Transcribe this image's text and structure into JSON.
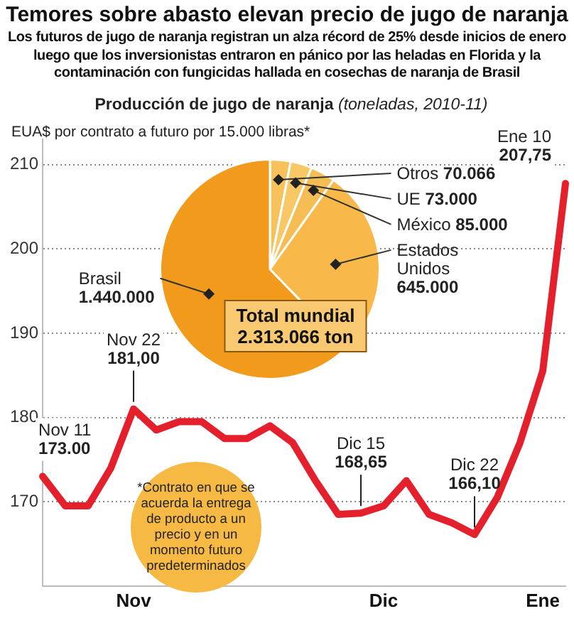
{
  "chart_data": [
    {
      "type": "line",
      "title": "Temores sobre abasto elevan precio de jugo de naranja",
      "subtitle": "Los futuros de jugo de naranja registran un alza récord de 25% desde inicios de enero luego que los inversionistas entraron en pánico por las heladas en Florida y la contaminación con fungicidas hallada en cosechas de naranja de Brasil",
      "ylabel": "EUA$ por contrato a futuro por 15.000 libras*",
      "categories": [
        null,
        null,
        null,
        null,
        "Nov",
        null,
        null,
        null,
        null,
        null,
        null,
        null,
        null,
        null,
        null,
        "Dic",
        null,
        null,
        null,
        null,
        null,
        null,
        "Ene",
        null
      ],
      "series": [
        {
          "color": "#e3202b",
          "values": [
            173,
            169.5,
            169.5,
            174,
            181,
            178.5,
            179.5,
            179.5,
            177.5,
            177.5,
            179,
            177,
            172.5,
            168.5,
            168.65,
            169.5,
            172.5,
            168.5,
            167.5,
            166.1,
            170.5,
            177,
            185.5,
            207.75
          ],
          "value_labels": [
            "Nov 11\n173.00",
            null,
            null,
            null,
            "Nov 22\n181,00",
            null,
            null,
            null,
            null,
            null,
            null,
            null,
            null,
            null,
            "Dic 15\n168,65",
            null,
            null,
            null,
            null,
            "Dic 22\n166,10",
            null,
            null,
            null,
            "Ene 10\n207,75"
          ]
        }
      ],
      "ylim": [
        160,
        213
      ],
      "yticks": [
        170,
        180,
        190,
        200,
        210
      ],
      "grid": "y",
      "marker": "none",
      "line_style": "solid",
      "legend": false,
      "annotations": [
        "*Contrato en que se acuerda la entrega de producto a un precio y en un momento futuro predeterminados"
      ]
    },
    {
      "type": "pie",
      "title": "Producción de jugo de naranja",
      "subtitle": "(toneladas, 2010-11)",
      "categories": [
        "Otros",
        "UE",
        "México",
        "Estados Unidos",
        "Brasil"
      ],
      "values": [
        70066,
        73000,
        85000,
        645000,
        1440000
      ],
      "value_labels": [
        "70.066",
        "73.000",
        "85.000",
        "645.000",
        "1.440.000"
      ],
      "colors": [
        "#f7c25c",
        "#f8c866",
        "#f6bd55",
        "#f9b94a",
        "#f29a1c"
      ],
      "annotations": [
        "Total mundial\n2.313.066 ton"
      ]
    }
  ]
}
